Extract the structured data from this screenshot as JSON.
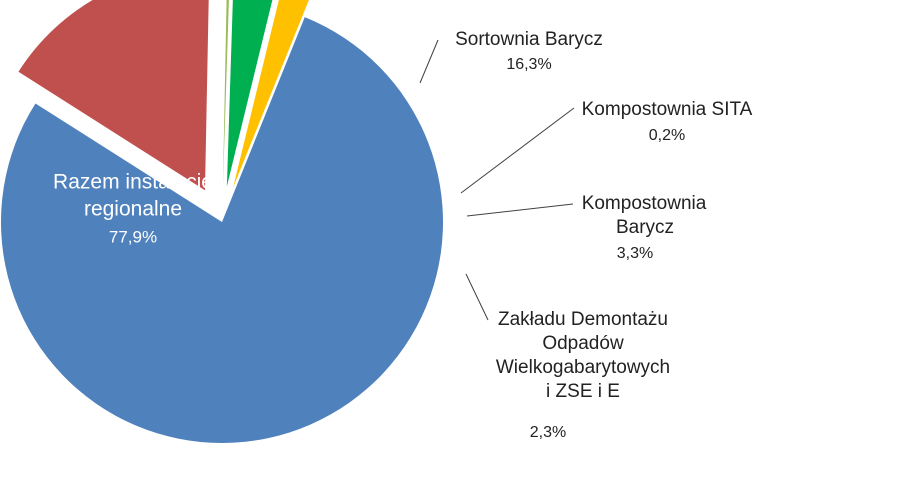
{
  "chart_data": {
    "type": "pie",
    "slices": [
      {
        "name": "Razem instalacje regionalne",
        "name_lines": [
          "Razem instalacje",
          "regionalne"
        ],
        "value": 77.9,
        "value_label": "77,9%",
        "color": "#4F81BD",
        "exploded": false
      },
      {
        "name": "Sortownia Barycz",
        "name_lines": [
          "Sortownia Barycz"
        ],
        "value": 16.3,
        "value_label": "16,3%",
        "color": "#C0504D",
        "exploded": true
      },
      {
        "name": "Kompostownia SITA",
        "name_lines": [
          "Kompostownia SITA"
        ],
        "value": 0.2,
        "value_label": "0,2%",
        "color": "#9BBB59",
        "exploded": true
      },
      {
        "name": "Kompostownia Barycz",
        "name_lines": [
          "Kompostownia",
          "Barycz"
        ],
        "value": 3.3,
        "value_label": "3,3%",
        "color": "#00B050",
        "exploded": true
      },
      {
        "name": "Zakładu Demontażu Odpadów Wielkogabarytowych i ZSE i E",
        "name_lines": [
          "Zakładu Demontażu",
          "Odpadów",
          "Wielkogabarytowych",
          "i ZSE i E"
        ],
        "value": 2.3,
        "value_label": "2,3%",
        "color": "#FFC000",
        "exploded": true
      }
    ],
    "leader_line_color": "#404040"
  }
}
